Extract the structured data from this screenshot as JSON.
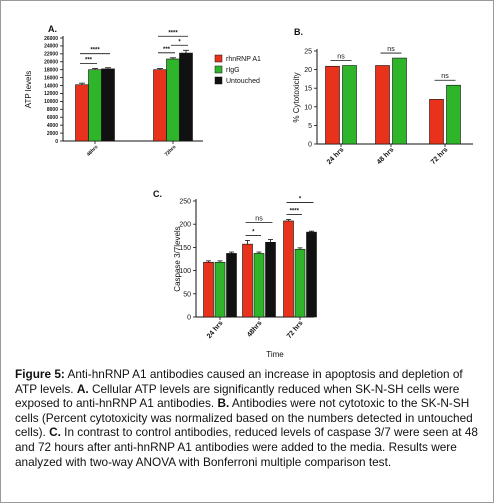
{
  "colors": {
    "rhnRNP A1": "#e8321c",
    "rIgG": "#2fb52a",
    "Untouched": "#111111"
  },
  "chart_data": [
    {
      "panel_label": "A.",
      "type": "bar",
      "categories": [
        "48hrs",
        "72hrs"
      ],
      "series": [
        {
          "name": "rhnRNP A1",
          "values": [
            14200,
            18000
          ],
          "errors": [
            400,
            300
          ]
        },
        {
          "name": "rIgG",
          "values": [
            18000,
            20700
          ],
          "errors": [
            300,
            300
          ]
        },
        {
          "name": "Untouched",
          "values": [
            18200,
            22200
          ],
          "errors": [
            300,
            700
          ]
        }
      ],
      "ylabel": "ATP levels",
      "ylim": [
        0,
        26000
      ],
      "yticks": [
        0,
        2000,
        4000,
        6000,
        8000,
        10000,
        12000,
        14000,
        16000,
        18000,
        20000,
        22000,
        24000,
        26000
      ],
      "annotations": [
        {
          "group": 0,
          "from": 0,
          "to": 1,
          "text": "***"
        },
        {
          "group": 0,
          "from": 0,
          "to": 2,
          "text": "****"
        },
        {
          "group": 1,
          "from": 0,
          "to": 1,
          "text": "***"
        },
        {
          "group": 1,
          "from": 1,
          "to": 2,
          "text": "*"
        },
        {
          "group": 1,
          "from": 0,
          "to": 2,
          "text": "****"
        }
      ],
      "legend": [
        "rhnRNP A1",
        "rIgG",
        "Untouched"
      ],
      "legend_position": "right",
      "grid": false
    },
    {
      "panel_label": "B.",
      "type": "bar",
      "categories": [
        "24 hrs",
        "48 hrs",
        "72 hrs"
      ],
      "series": [
        {
          "name": "rhnRNP A1",
          "values": [
            20.9,
            21.1,
            12.0
          ]
        },
        {
          "name": "rIgG",
          "values": [
            21.1,
            23.1,
            15.8
          ]
        }
      ],
      "ylabel": "% Cytotoxicity",
      "ylim": [
        0,
        25
      ],
      "yticks": [
        0,
        5,
        10,
        15,
        20,
        25
      ],
      "annotations": [
        {
          "group": 0,
          "from": 0,
          "to": 1,
          "text": "ns"
        },
        {
          "group": 1,
          "from": 0,
          "to": 1,
          "text": "ns"
        },
        {
          "group": 2,
          "from": 0,
          "to": 1,
          "text": "ns"
        }
      ],
      "grid": false
    },
    {
      "panel_label": "C.",
      "type": "bar",
      "categories": [
        "24 hrs",
        "48hrs",
        "72 hrs"
      ],
      "series": [
        {
          "name": "rhnRNP A1",
          "values": [
            118,
            157,
            207
          ],
          "errors": [
            3,
            8,
            3
          ]
        },
        {
          "name": "rIgG",
          "values": [
            118,
            137,
            146
          ],
          "errors": [
            3,
            3,
            3
          ]
        },
        {
          "name": "Untouched",
          "values": [
            137,
            161,
            183
          ],
          "errors": [
            3,
            6,
            2
          ]
        }
      ],
      "ylabel": "Caspase 3/7levels",
      "xlabel": "Time",
      "ylim": [
        0,
        250
      ],
      "yticks": [
        0,
        50,
        100,
        150,
        200,
        250
      ],
      "annotations": [
        {
          "group": 1,
          "from": 0,
          "to": 1,
          "text": "*"
        },
        {
          "group": 1,
          "from": 0,
          "to": 2,
          "text": "ns"
        },
        {
          "group": 2,
          "from": 0,
          "to": 1,
          "text": "****"
        },
        {
          "group": 2,
          "from": 0,
          "to": 2,
          "text": "*"
        }
      ],
      "grid": false
    }
  ],
  "caption": {
    "label": "Figure 5:",
    "text_1": " Anti-hnRNP A1 antibodies caused an increase in apoptosis and depletion of ATP levels. ",
    "label_a": "A.",
    "text_a": " Cellular ATP levels are significantly reduced when SK-N-SH cells were exposed to anti-hnRNP A1 antibodies. ",
    "label_b": "B.",
    "text_b": " Antibodies were not cytotoxic to the SK-N-SH cells (Percent cytotoxicity was normalized based on the numbers detected in untouched cells). ",
    "label_c": "C.",
    "text_c": " In contrast to control antibodies, reduced levels of caspase 3/7 were seen at 48 and 72 hours after anti-hnRNP A1 antibodies were added to the media. Results were analyzed with two-way ANOVA with Bonferroni multiple comparison test."
  }
}
